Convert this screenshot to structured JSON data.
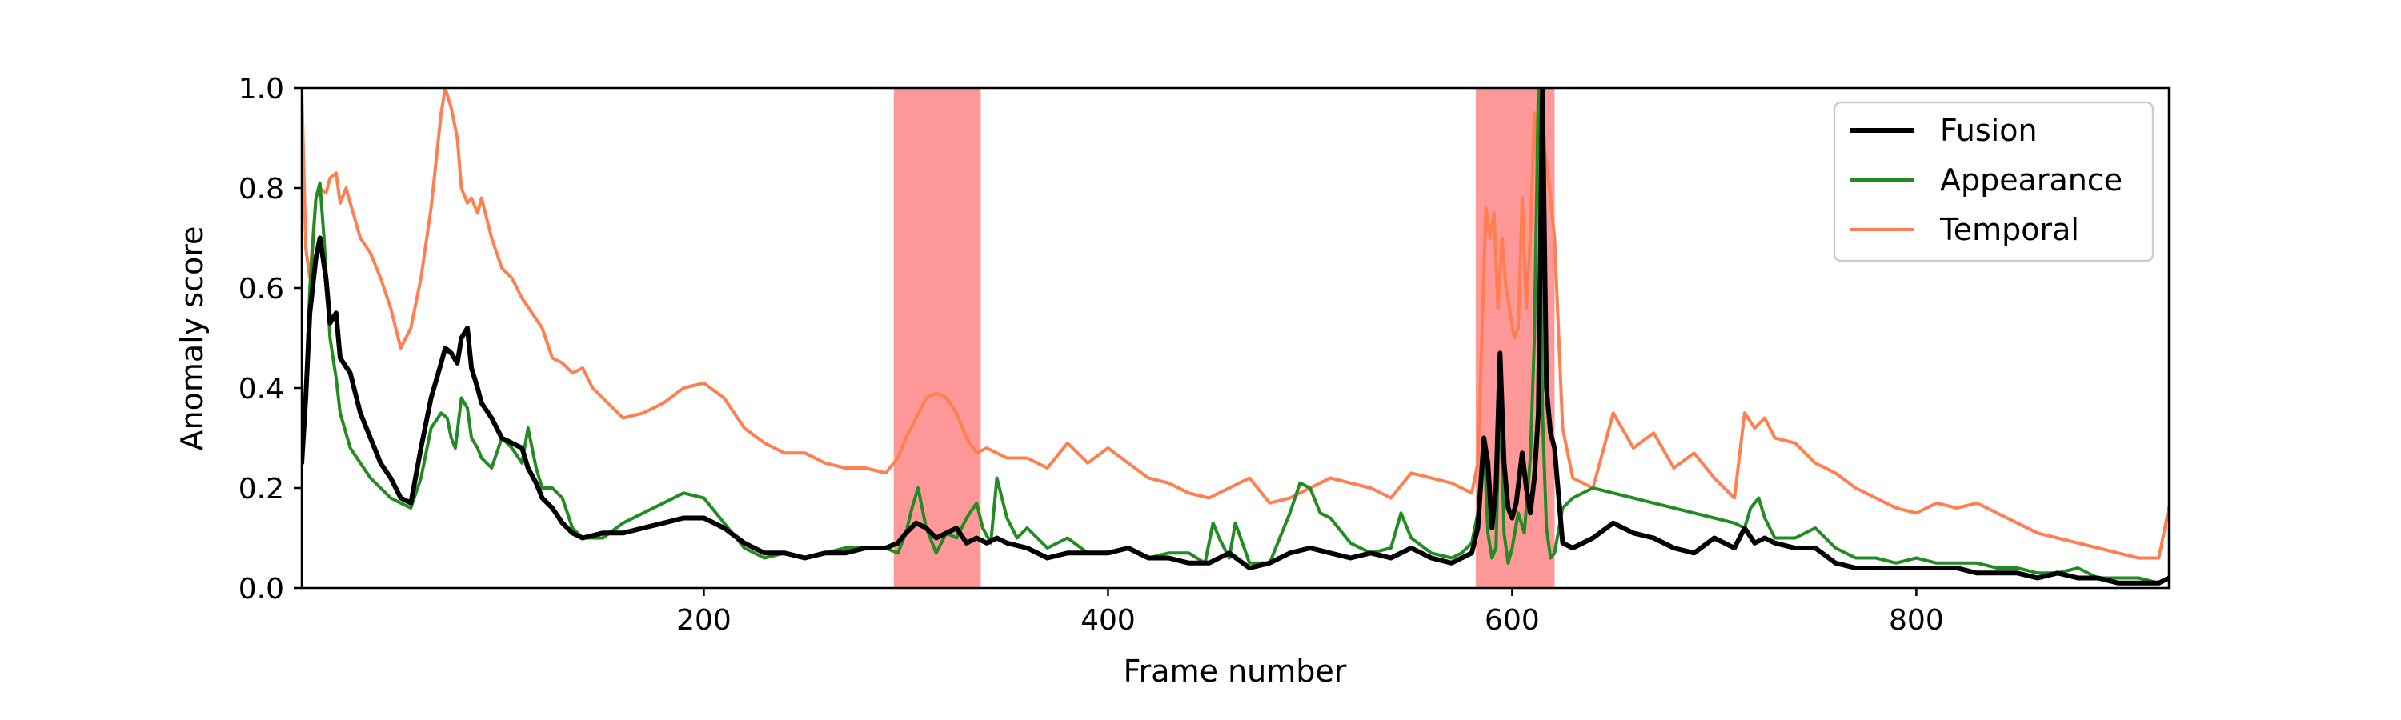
{
  "chart_data": {
    "type": "line",
    "xlabel": "Frame number",
    "ylabel": "Anomaly score",
    "xlim": [
      1,
      925
    ],
    "ylim": [
      0.0,
      1.0
    ],
    "xticks": [
      200,
      400,
      600,
      800
    ],
    "yticks": [
      0.0,
      0.2,
      0.4,
      0.6,
      0.8,
      1.0
    ],
    "xtick_labels": [
      "200",
      "400",
      "600",
      "800"
    ],
    "ytick_labels": [
      "0.0",
      "0.2",
      "0.4",
      "0.6",
      "0.8",
      "1.0"
    ],
    "grid": false,
    "legend_position": "upper right",
    "anomaly_regions": [
      {
        "start": 294,
        "end": 337,
        "color": "#ff9999"
      },
      {
        "start": 582,
        "end": 621,
        "color": "#ff9999"
      }
    ],
    "series": [
      {
        "name": "Fusion",
        "color": "#000000",
        "width": 6,
        "x": [
          1,
          3,
          5,
          8,
          10,
          13,
          15,
          18,
          20,
          25,
          30,
          35,
          40,
          45,
          50,
          55,
          60,
          65,
          70,
          72,
          75,
          78,
          80,
          83,
          85,
          88,
          90,
          95,
          100,
          105,
          110,
          113,
          117,
          120,
          125,
          130,
          135,
          140,
          150,
          160,
          170,
          180,
          190,
          200,
          210,
          220,
          230,
          240,
          250,
          260,
          270,
          280,
          290,
          296,
          300,
          305,
          310,
          315,
          320,
          325,
          330,
          335,
          340,
          345,
          350,
          360,
          370,
          380,
          390,
          400,
          410,
          420,
          430,
          440,
          450,
          460,
          470,
          480,
          490,
          500,
          510,
          520,
          530,
          540,
          550,
          560,
          570,
          580,
          583,
          586,
          588,
          590,
          592,
          594,
          596,
          598,
          600,
          602,
          605,
          607,
          609,
          611,
          613,
          615,
          617,
          619,
          621,
          625,
          630,
          640,
          650,
          660,
          670,
          680,
          690,
          700,
          710,
          715,
          720,
          725,
          730,
          740,
          750,
          760,
          770,
          780,
          790,
          800,
          810,
          820,
          830,
          840,
          850,
          860,
          870,
          880,
          890,
          900,
          910,
          920,
          925
        ],
        "y": [
          0.25,
          0.38,
          0.55,
          0.66,
          0.7,
          0.62,
          0.53,
          0.55,
          0.46,
          0.43,
          0.35,
          0.3,
          0.25,
          0.22,
          0.18,
          0.17,
          0.28,
          0.38,
          0.45,
          0.48,
          0.47,
          0.45,
          0.5,
          0.52,
          0.44,
          0.4,
          0.37,
          0.34,
          0.3,
          0.29,
          0.28,
          0.24,
          0.21,
          0.18,
          0.16,
          0.13,
          0.11,
          0.1,
          0.11,
          0.11,
          0.12,
          0.13,
          0.14,
          0.14,
          0.12,
          0.09,
          0.07,
          0.07,
          0.06,
          0.07,
          0.07,
          0.08,
          0.08,
          0.09,
          0.11,
          0.13,
          0.12,
          0.1,
          0.11,
          0.12,
          0.09,
          0.1,
          0.09,
          0.1,
          0.09,
          0.08,
          0.06,
          0.07,
          0.07,
          0.07,
          0.08,
          0.06,
          0.06,
          0.05,
          0.05,
          0.07,
          0.04,
          0.05,
          0.07,
          0.08,
          0.07,
          0.06,
          0.07,
          0.06,
          0.08,
          0.06,
          0.05,
          0.07,
          0.12,
          0.3,
          0.25,
          0.12,
          0.2,
          0.47,
          0.25,
          0.16,
          0.14,
          0.17,
          0.27,
          0.2,
          0.15,
          0.22,
          0.35,
          1.0,
          0.4,
          0.31,
          0.28,
          0.09,
          0.08,
          0.1,
          0.13,
          0.11,
          0.1,
          0.08,
          0.07,
          0.1,
          0.08,
          0.12,
          0.09,
          0.1,
          0.09,
          0.08,
          0.08,
          0.05,
          0.04,
          0.04,
          0.04,
          0.04,
          0.04,
          0.04,
          0.03,
          0.03,
          0.03,
          0.02,
          0.03,
          0.02,
          0.02,
          0.01,
          0.01,
          0.01,
          0.02
        ]
      },
      {
        "name": "Appearance",
        "color": "#228b22",
        "width": 4,
        "x": [
          1,
          3,
          5,
          8,
          10,
          12,
          15,
          18,
          20,
          25,
          30,
          35,
          40,
          45,
          50,
          55,
          60,
          65,
          70,
          73,
          75,
          77,
          80,
          83,
          85,
          88,
          90,
          95,
          100,
          105,
          110,
          113,
          117,
          120,
          125,
          130,
          135,
          140,
          150,
          160,
          170,
          180,
          190,
          200,
          210,
          220,
          230,
          240,
          250,
          260,
          270,
          280,
          290,
          296,
          300,
          303,
          306,
          310,
          315,
          320,
          325,
          330,
          335,
          338,
          342,
          345,
          350,
          355,
          360,
          370,
          380,
          390,
          395,
          400,
          410,
          420,
          430,
          440,
          448,
          452,
          455,
          460,
          463,
          470,
          480,
          485,
          490,
          495,
          500,
          505,
          510,
          520,
          530,
          540,
          545,
          550,
          560,
          570,
          575,
          580,
          583,
          586,
          588,
          590,
          592,
          594,
          596,
          598,
          600,
          603,
          606,
          609,
          611,
          613,
          615,
          617,
          619,
          621,
          625,
          630,
          640,
          650,
          660,
          670,
          680,
          690,
          700,
          710,
          715,
          718,
          722,
          725,
          730,
          740,
          750,
          755,
          760,
          770,
          780,
          790,
          800,
          810,
          820,
          830,
          840,
          850,
          860,
          870,
          880,
          890,
          900,
          910,
          920,
          925
        ],
        "y": [
          0.25,
          0.4,
          0.6,
          0.78,
          0.81,
          0.7,
          0.5,
          0.42,
          0.35,
          0.28,
          0.25,
          0.22,
          0.2,
          0.18,
          0.17,
          0.16,
          0.22,
          0.32,
          0.35,
          0.34,
          0.3,
          0.28,
          0.38,
          0.36,
          0.3,
          0.28,
          0.26,
          0.24,
          0.3,
          0.28,
          0.25,
          0.32,
          0.24,
          0.2,
          0.2,
          0.18,
          0.12,
          0.1,
          0.1,
          0.13,
          0.15,
          0.17,
          0.19,
          0.18,
          0.13,
          0.08,
          0.06,
          0.07,
          0.06,
          0.07,
          0.08,
          0.08,
          0.08,
          0.07,
          0.11,
          0.16,
          0.2,
          0.12,
          0.07,
          0.11,
          0.1,
          0.14,
          0.17,
          0.12,
          0.09,
          0.22,
          0.14,
          0.1,
          0.12,
          0.08,
          0.1,
          0.07,
          0.07,
          0.07,
          0.08,
          0.06,
          0.07,
          0.07,
          0.05,
          0.13,
          0.1,
          0.06,
          0.13,
          0.05,
          0.05,
          0.1,
          0.15,
          0.21,
          0.2,
          0.15,
          0.14,
          0.09,
          0.07,
          0.08,
          0.15,
          0.1,
          0.07,
          0.06,
          0.07,
          0.09,
          0.15,
          0.3,
          0.11,
          0.06,
          0.08,
          0.4,
          0.11,
          0.05,
          0.08,
          0.15,
          0.11,
          0.26,
          0.5,
          1.0,
          0.35,
          0.12,
          0.06,
          0.07,
          0.16,
          0.18,
          0.2,
          0.19,
          0.18,
          0.17,
          0.16,
          0.15,
          0.14,
          0.13,
          0.12,
          0.16,
          0.18,
          0.14,
          0.1,
          0.1,
          0.12,
          0.1,
          0.08,
          0.06,
          0.06,
          0.05,
          0.06,
          0.05,
          0.05,
          0.05,
          0.04,
          0.04,
          0.03,
          0.03,
          0.04,
          0.02,
          0.02,
          0.02,
          0.01,
          0.02
        ]
      },
      {
        "name": "Temporal",
        "color": "#ff7f50",
        "width": 4,
        "x": [
          1,
          3,
          5,
          8,
          10,
          13,
          15,
          18,
          20,
          23,
          25,
          30,
          35,
          40,
          45,
          50,
          55,
          60,
          65,
          70,
          72,
          75,
          78,
          80,
          83,
          85,
          88,
          90,
          95,
          100,
          105,
          110,
          115,
          120,
          125,
          130,
          135,
          140,
          145,
          150,
          160,
          170,
          180,
          190,
          200,
          210,
          220,
          230,
          240,
          250,
          260,
          270,
          280,
          290,
          296,
          300,
          305,
          310,
          315,
          320,
          325,
          330,
          335,
          340,
          345,
          350,
          360,
          370,
          380,
          390,
          400,
          410,
          420,
          430,
          440,
          450,
          460,
          470,
          480,
          490,
          500,
          510,
          520,
          530,
          540,
          550,
          560,
          570,
          580,
          583,
          585,
          587,
          589,
          591,
          593,
          595,
          597,
          599,
          601,
          603,
          605,
          607,
          609,
          611,
          613,
          615,
          617,
          619,
          621,
          625,
          630,
          640,
          650,
          660,
          670,
          680,
          690,
          700,
          710,
          715,
          720,
          725,
          730,
          740,
          750,
          760,
          770,
          780,
          790,
          800,
          810,
          820,
          830,
          840,
          850,
          860,
          870,
          880,
          890,
          900,
          910,
          920,
          925
        ],
        "y": [
          1.0,
          0.68,
          0.62,
          0.78,
          0.8,
          0.79,
          0.82,
          0.83,
          0.77,
          0.8,
          0.77,
          0.7,
          0.67,
          0.62,
          0.56,
          0.48,
          0.52,
          0.62,
          0.76,
          0.95,
          1.0,
          0.96,
          0.9,
          0.8,
          0.77,
          0.78,
          0.75,
          0.78,
          0.7,
          0.64,
          0.62,
          0.58,
          0.55,
          0.52,
          0.46,
          0.45,
          0.43,
          0.44,
          0.4,
          0.38,
          0.34,
          0.35,
          0.37,
          0.4,
          0.41,
          0.38,
          0.32,
          0.29,
          0.27,
          0.27,
          0.25,
          0.24,
          0.24,
          0.23,
          0.26,
          0.3,
          0.34,
          0.38,
          0.39,
          0.38,
          0.35,
          0.3,
          0.27,
          0.28,
          0.27,
          0.26,
          0.26,
          0.24,
          0.29,
          0.25,
          0.28,
          0.25,
          0.22,
          0.21,
          0.19,
          0.18,
          0.2,
          0.22,
          0.17,
          0.18,
          0.2,
          0.22,
          0.21,
          0.2,
          0.18,
          0.23,
          0.22,
          0.21,
          0.19,
          0.25,
          0.5,
          0.76,
          0.7,
          0.75,
          0.56,
          0.7,
          0.6,
          0.55,
          0.5,
          0.52,
          0.78,
          0.56,
          0.7,
          0.95,
          0.8,
          0.9,
          0.85,
          0.78,
          0.7,
          0.32,
          0.22,
          0.2,
          0.35,
          0.28,
          0.31,
          0.24,
          0.27,
          0.22,
          0.18,
          0.35,
          0.32,
          0.34,
          0.3,
          0.29,
          0.25,
          0.23,
          0.2,
          0.18,
          0.16,
          0.15,
          0.17,
          0.16,
          0.17,
          0.15,
          0.13,
          0.11,
          0.1,
          0.09,
          0.08,
          0.07,
          0.06,
          0.06,
          0.16
        ]
      }
    ]
  }
}
